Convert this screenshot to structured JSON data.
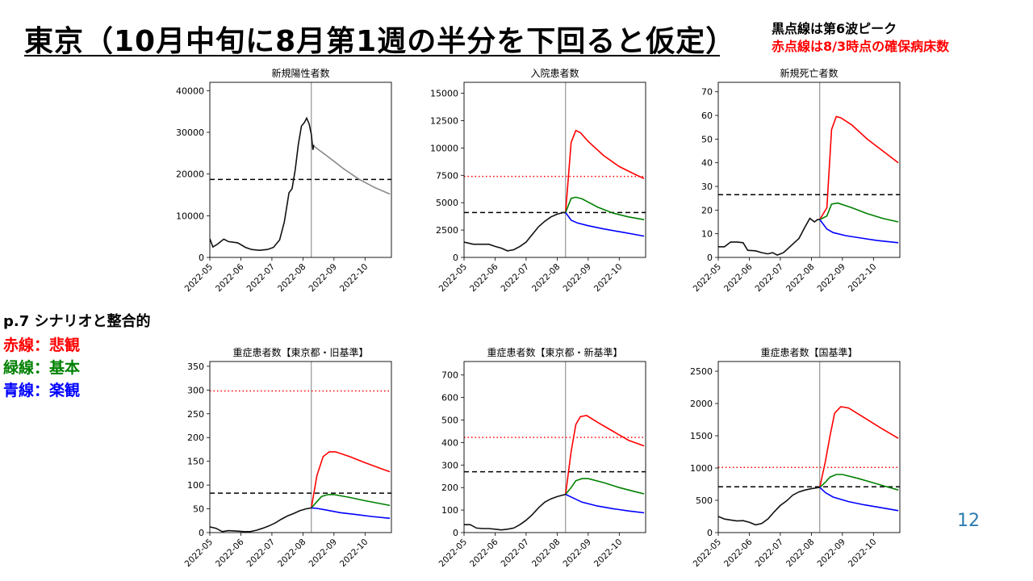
{
  "slide": {
    "title": "東京（10月中旬に8月第1週の半分を下回ると仮定）",
    "note_black": "黒点線は第6波ピーク",
    "note_red": "赤点線は8/3時点の確保病床数",
    "legend_heading": "p.7 シナリオと整合的",
    "legend": [
      {
        "label": "赤線：悲観",
        "color": "#ff0000"
      },
      {
        "label": "緑線：基本",
        "color": "#008000"
      },
      {
        "label": "青線：楽観",
        "color": "#0000ff"
      }
    ],
    "page_number": "12"
  },
  "chart_data": [
    {
      "id": "new-cases",
      "type": "line",
      "title": "新規陽性者数",
      "x_ticks": [
        "2022-05",
        "2022-06",
        "2022-07",
        "2022-08",
        "2022-09",
        "2022-10"
      ],
      "ylim": [
        0,
        42000
      ],
      "y_ticks": [
        0,
        10000,
        20000,
        30000,
        40000
      ],
      "current_line_x": 3.27,
      "black_dashed": 18700,
      "red_dotted": null,
      "actual": [
        [
          0,
          4500
        ],
        [
          0.1,
          2500
        ],
        [
          0.25,
          3200
        ],
        [
          0.45,
          4400
        ],
        [
          0.6,
          3800
        ],
        [
          0.9,
          3500
        ],
        [
          1.15,
          2400
        ],
        [
          1.35,
          1900
        ],
        [
          1.6,
          1700
        ],
        [
          1.85,
          1900
        ],
        [
          2.05,
          2400
        ],
        [
          2.25,
          4200
        ],
        [
          2.4,
          8500
        ],
        [
          2.55,
          15500
        ],
        [
          2.65,
          16500
        ],
        [
          2.75,
          21000
        ],
        [
          2.85,
          27000
        ],
        [
          2.95,
          31500
        ],
        [
          3.05,
          32400
        ],
        [
          3.12,
          33400
        ],
        [
          3.2,
          32000
        ],
        [
          3.27,
          29500
        ],
        [
          3.32,
          25800
        ],
        [
          3.35,
          27000
        ]
      ],
      "projection": [
        [
          3.35,
          26700
        ],
        [
          3.8,
          24200
        ],
        [
          4.3,
          21300
        ],
        [
          4.8,
          18800
        ],
        [
          5.3,
          16800
        ],
        [
          5.8,
          15200
        ]
      ],
      "scenarios": []
    },
    {
      "id": "inpatients",
      "type": "line",
      "title": "入院患者数",
      "x_ticks": [
        "2022-05",
        "2022-06",
        "2022-07",
        "2022-08",
        "2022-09",
        "2022-10"
      ],
      "ylim": [
        0,
        16000
      ],
      "y_ticks": [
        0,
        2500,
        5000,
        7500,
        10000,
        12500,
        15000
      ],
      "current_line_x": 3.27,
      "black_dashed": 4100,
      "red_dotted": 7400,
      "actual": [
        [
          0,
          1400
        ],
        [
          0.3,
          1200
        ],
        [
          0.6,
          1200
        ],
        [
          0.8,
          1200
        ],
        [
          1.0,
          1000
        ],
        [
          1.2,
          850
        ],
        [
          1.4,
          600
        ],
        [
          1.6,
          700
        ],
        [
          1.8,
          1000
        ],
        [
          2.0,
          1400
        ],
        [
          2.2,
          2100
        ],
        [
          2.4,
          2800
        ],
        [
          2.6,
          3300
        ],
        [
          2.8,
          3700
        ],
        [
          3.0,
          3950
        ],
        [
          3.2,
          4100
        ],
        [
          3.27,
          4100
        ]
      ],
      "projection": [],
      "scenarios": [
        {
          "color": "#ff0000",
          "points": [
            [
              3.27,
              4100
            ],
            [
              3.45,
              10500
            ],
            [
              3.6,
              11600
            ],
            [
              3.75,
              11400
            ],
            [
              4.0,
              10600
            ],
            [
              4.5,
              9300
            ],
            [
              5.0,
              8300
            ],
            [
              5.5,
              7600
            ],
            [
              5.8,
              7200
            ]
          ]
        },
        {
          "color": "#008000",
          "points": [
            [
              3.27,
              4100
            ],
            [
              3.45,
              5400
            ],
            [
              3.6,
              5500
            ],
            [
              3.8,
              5350
            ],
            [
              4.3,
              4600
            ],
            [
              4.8,
              4050
            ],
            [
              5.3,
              3700
            ],
            [
              5.8,
              3450
            ]
          ]
        },
        {
          "color": "#0000ff",
          "points": [
            [
              3.27,
              4100
            ],
            [
              3.45,
              3400
            ],
            [
              3.65,
              3150
            ],
            [
              4.0,
              2900
            ],
            [
              4.5,
              2600
            ],
            [
              5.0,
              2350
            ],
            [
              5.5,
              2100
            ],
            [
              5.8,
              1950
            ]
          ]
        }
      ]
    },
    {
      "id": "new-deaths",
      "type": "line",
      "title": "新規死亡者数",
      "x_ticks": [
        "2022-05",
        "2022-06",
        "2022-07",
        "2022-08",
        "2022-09",
        "2022-10"
      ],
      "ylim": [
        0,
        74
      ],
      "y_ticks": [
        0,
        10,
        20,
        30,
        40,
        50,
        60,
        70
      ],
      "current_line_x": 3.27,
      "black_dashed": 26.5,
      "red_dotted": null,
      "actual": [
        [
          0,
          4.5
        ],
        [
          0.2,
          4.5
        ],
        [
          0.4,
          6.5
        ],
        [
          0.6,
          6.5
        ],
        [
          0.8,
          6.2
        ],
        [
          0.95,
          3.0
        ],
        [
          1.2,
          2.8
        ],
        [
          1.4,
          2.0
        ],
        [
          1.6,
          1.5
        ],
        [
          1.75,
          2.0
        ],
        [
          1.9,
          1.0
        ],
        [
          2.1,
          2.0
        ],
        [
          2.35,
          5.0
        ],
        [
          2.6,
          8.0
        ],
        [
          2.8,
          13.0
        ],
        [
          2.95,
          16.5
        ],
        [
          3.1,
          15.0
        ],
        [
          3.2,
          16.0
        ],
        [
          3.27,
          16.0
        ]
      ],
      "projection": [],
      "scenarios": [
        {
          "color": "#ff0000",
          "points": [
            [
              3.27,
              16
            ],
            [
              3.5,
              21
            ],
            [
              3.65,
              54
            ],
            [
              3.8,
              59.5
            ],
            [
              3.95,
              59
            ],
            [
              4.3,
              56
            ],
            [
              4.8,
              50
            ],
            [
              5.3,
              45
            ],
            [
              5.8,
              40
            ]
          ]
        },
        {
          "color": "#008000",
          "points": [
            [
              3.27,
              16
            ],
            [
              3.5,
              17.5
            ],
            [
              3.65,
              22.5
            ],
            [
              3.85,
              23
            ],
            [
              4.3,
              21
            ],
            [
              4.8,
              18.5
            ],
            [
              5.3,
              16.5
            ],
            [
              5.8,
              15
            ]
          ]
        },
        {
          "color": "#0000ff",
          "points": [
            [
              3.27,
              16
            ],
            [
              3.5,
              12
            ],
            [
              3.7,
              10.5
            ],
            [
              4.1,
              9.2
            ],
            [
              4.6,
              8.2
            ],
            [
              5.1,
              7.2
            ],
            [
              5.8,
              6.2
            ]
          ]
        }
      ]
    },
    {
      "id": "severe-tokyo-old",
      "type": "line",
      "title": "重症患者数【東京都・旧基準】",
      "x_ticks": [
        "2022-05",
        "2022-06",
        "2022-07",
        "2022-08",
        "2022-09",
        "2022-10"
      ],
      "ylim": [
        0,
        360
      ],
      "y_ticks": [
        0,
        50,
        100,
        150,
        200,
        250,
        300,
        350
      ],
      "current_line_x": 3.27,
      "black_dashed": 83,
      "red_dotted": 298,
      "actual": [
        [
          0,
          12
        ],
        [
          0.2,
          9
        ],
        [
          0.4,
          2
        ],
        [
          0.6,
          4
        ],
        [
          0.9,
          3
        ],
        [
          1.1,
          2
        ],
        [
          1.3,
          2
        ],
        [
          1.5,
          5
        ],
        [
          1.7,
          9
        ],
        [
          1.9,
          14
        ],
        [
          2.1,
          20
        ],
        [
          2.3,
          28
        ],
        [
          2.5,
          35
        ],
        [
          2.7,
          40
        ],
        [
          2.9,
          46
        ],
        [
          3.1,
          50
        ],
        [
          3.27,
          52
        ]
      ],
      "projection": [],
      "scenarios": [
        {
          "color": "#ff0000",
          "points": [
            [
              3.27,
              52
            ],
            [
              3.45,
              120
            ],
            [
              3.65,
              160
            ],
            [
              3.85,
              170
            ],
            [
              4.05,
              170
            ],
            [
              4.5,
              160
            ],
            [
              5.0,
              147
            ],
            [
              5.5,
              135
            ],
            [
              5.8,
              128
            ]
          ]
        },
        {
          "color": "#008000",
          "points": [
            [
              3.27,
              52
            ],
            [
              3.45,
              65
            ],
            [
              3.6,
              76
            ],
            [
              3.8,
              80
            ],
            [
              4.0,
              80
            ],
            [
              4.5,
              74
            ],
            [
              5.0,
              67
            ],
            [
              5.5,
              61
            ],
            [
              5.8,
              57
            ]
          ]
        },
        {
          "color": "#0000ff",
          "points": [
            [
              3.27,
              52
            ],
            [
              3.45,
              51
            ],
            [
              3.7,
              48
            ],
            [
              4.2,
              42
            ],
            [
              4.7,
              38
            ],
            [
              5.2,
              34
            ],
            [
              5.8,
              30
            ]
          ]
        }
      ]
    },
    {
      "id": "severe-tokyo-new",
      "type": "line",
      "title": "重症患者数【東京都・新基準】",
      "x_ticks": [
        "2022-05",
        "2022-06",
        "2022-07",
        "2022-08",
        "2022-09",
        "2022-10"
      ],
      "ylim": [
        0,
        760
      ],
      "y_ticks": [
        0,
        100,
        200,
        300,
        400,
        500,
        600,
        700
      ],
      "current_line_x": 3.27,
      "black_dashed": 270,
      "red_dotted": 423,
      "actual": [
        [
          0,
          35
        ],
        [
          0.2,
          35
        ],
        [
          0.4,
          20
        ],
        [
          0.6,
          18
        ],
        [
          0.8,
          18
        ],
        [
          1.0,
          15
        ],
        [
          1.2,
          12
        ],
        [
          1.4,
          15
        ],
        [
          1.6,
          20
        ],
        [
          1.8,
          35
        ],
        [
          2.0,
          55
        ],
        [
          2.2,
          80
        ],
        [
          2.4,
          110
        ],
        [
          2.6,
          135
        ],
        [
          2.8,
          150
        ],
        [
          3.0,
          160
        ],
        [
          3.27,
          170
        ]
      ],
      "projection": [],
      "scenarios": [
        {
          "color": "#ff0000",
          "points": [
            [
              3.27,
              170
            ],
            [
              3.45,
              360
            ],
            [
              3.6,
              480
            ],
            [
              3.75,
              515
            ],
            [
              3.95,
              520
            ],
            [
              4.3,
              490
            ],
            [
              4.8,
              450
            ],
            [
              5.3,
              410
            ],
            [
              5.8,
              385
            ]
          ]
        },
        {
          "color": "#008000",
          "points": [
            [
              3.27,
              170
            ],
            [
              3.45,
              200
            ],
            [
              3.6,
              230
            ],
            [
              3.8,
              240
            ],
            [
              4.0,
              240
            ],
            [
              4.5,
              222
            ],
            [
              5.0,
              200
            ],
            [
              5.5,
              182
            ],
            [
              5.8,
              172
            ]
          ]
        },
        {
          "color": "#0000ff",
          "points": [
            [
              3.27,
              170
            ],
            [
              3.5,
              155
            ],
            [
              3.8,
              135
            ],
            [
              4.3,
              118
            ],
            [
              4.8,
              106
            ],
            [
              5.3,
              96
            ],
            [
              5.8,
              88
            ]
          ]
        }
      ]
    },
    {
      "id": "severe-national",
      "type": "line",
      "title": "重症患者数【国基準】",
      "x_ticks": [
        "2022-05",
        "2022-06",
        "2022-07",
        "2022-08",
        "2022-09",
        "2022-10"
      ],
      "ylim": [
        0,
        2650
      ],
      "y_ticks": [
        0,
        500,
        1000,
        1500,
        2000,
        2500
      ],
      "current_line_x": 3.27,
      "black_dashed": 710,
      "red_dotted": 1010,
      "actual": [
        [
          0,
          250
        ],
        [
          0.2,
          210
        ],
        [
          0.4,
          195
        ],
        [
          0.6,
          180
        ],
        [
          0.8,
          185
        ],
        [
          1.0,
          160
        ],
        [
          1.2,
          120
        ],
        [
          1.4,
          140
        ],
        [
          1.6,
          210
        ],
        [
          1.8,
          320
        ],
        [
          2.0,
          420
        ],
        [
          2.2,
          490
        ],
        [
          2.4,
          580
        ],
        [
          2.6,
          630
        ],
        [
          2.8,
          660
        ],
        [
          3.0,
          680
        ],
        [
          3.27,
          700
        ]
      ],
      "projection": [],
      "scenarios": [
        {
          "color": "#ff0000",
          "points": [
            [
              3.27,
              700
            ],
            [
              3.45,
              1100
            ],
            [
              3.6,
              1500
            ],
            [
              3.75,
              1850
            ],
            [
              3.95,
              1950
            ],
            [
              4.2,
              1930
            ],
            [
              4.7,
              1780
            ],
            [
              5.2,
              1630
            ],
            [
              5.8,
              1460
            ]
          ]
        },
        {
          "color": "#008000",
          "points": [
            [
              3.27,
              700
            ],
            [
              3.45,
              780
            ],
            [
              3.6,
              860
            ],
            [
              3.8,
              900
            ],
            [
              4.0,
              900
            ],
            [
              4.5,
              840
            ],
            [
              5.0,
              770
            ],
            [
              5.5,
              700
            ],
            [
              5.8,
              660
            ]
          ]
        },
        {
          "color": "#0000ff",
          "points": [
            [
              3.27,
              700
            ],
            [
              3.45,
              620
            ],
            [
              3.7,
              550
            ],
            [
              4.2,
              480
            ],
            [
              4.7,
              430
            ],
            [
              5.2,
              390
            ],
            [
              5.8,
              340
            ]
          ]
        }
      ]
    }
  ]
}
